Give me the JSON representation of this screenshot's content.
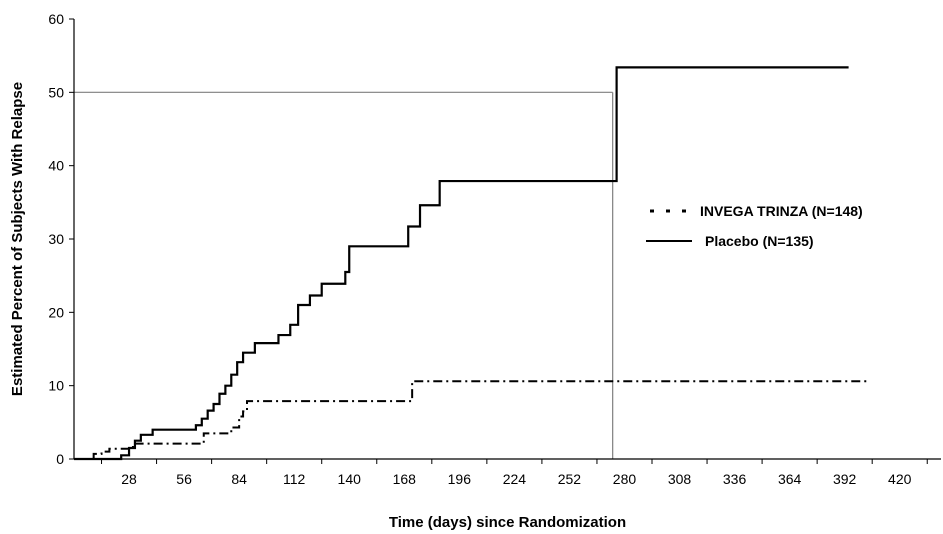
{
  "chart_data": {
    "type": "line",
    "title": "",
    "xlabel": "Time (days) since Randomization",
    "ylabel": "Estimated Percent of Subjects With Relapse",
    "xlim": [
      0,
      441
    ],
    "ylim": [
      0,
      60
    ],
    "x_ticks": [
      28,
      56,
      84,
      112,
      140,
      168,
      196,
      224,
      252,
      280,
      308,
      336,
      364,
      392,
      420
    ],
    "y_ticks": [
      0,
      10,
      20,
      30,
      40,
      50,
      60
    ],
    "grid": false,
    "legend_position": "right",
    "reference_lines": [
      {
        "orientation": "horizontal",
        "y": 50,
        "x_range": [
          0,
          274
        ]
      },
      {
        "orientation": "vertical",
        "x": 274,
        "y_range": [
          0,
          50
        ]
      }
    ],
    "series": [
      {
        "name": "INVEGA TRINZA (N=148)",
        "style": "dashdot",
        "color": "#000000",
        "x": [
          0,
          10,
          14,
          18,
          24,
          30,
          36,
          66,
          72,
          80,
          84,
          86,
          88,
          92,
          170,
          172,
          404
        ],
        "y": [
          0,
          0.7,
          1.0,
          1.4,
          1.4,
          2.1,
          2.1,
          3.5,
          3.5,
          4.3,
          5.8,
          6.5,
          7.9,
          7.9,
          7.9,
          10.6,
          10.6
        ]
      },
      {
        "name": "Placebo (N=135)",
        "style": "solid",
        "color": "#000000",
        "x": [
          0,
          24,
          28,
          31,
          34,
          38,
          40,
          62,
          65,
          68,
          71,
          74,
          77,
          80,
          83,
          86,
          92,
          104,
          110,
          114,
          120,
          126,
          138,
          140,
          170,
          176,
          186,
          274,
          276,
          394
        ],
        "y": [
          0,
          0.5,
          1.5,
          2.5,
          3.3,
          3.3,
          4.0,
          4.6,
          5.5,
          6.6,
          7.5,
          8.9,
          10.0,
          11.5,
          13.2,
          14.5,
          15.8,
          16.9,
          18.3,
          21.0,
          22.3,
          23.9,
          25.5,
          29.0,
          31.7,
          34.6,
          37.9,
          37.9,
          53.4,
          53.4
        ]
      }
    ]
  }
}
